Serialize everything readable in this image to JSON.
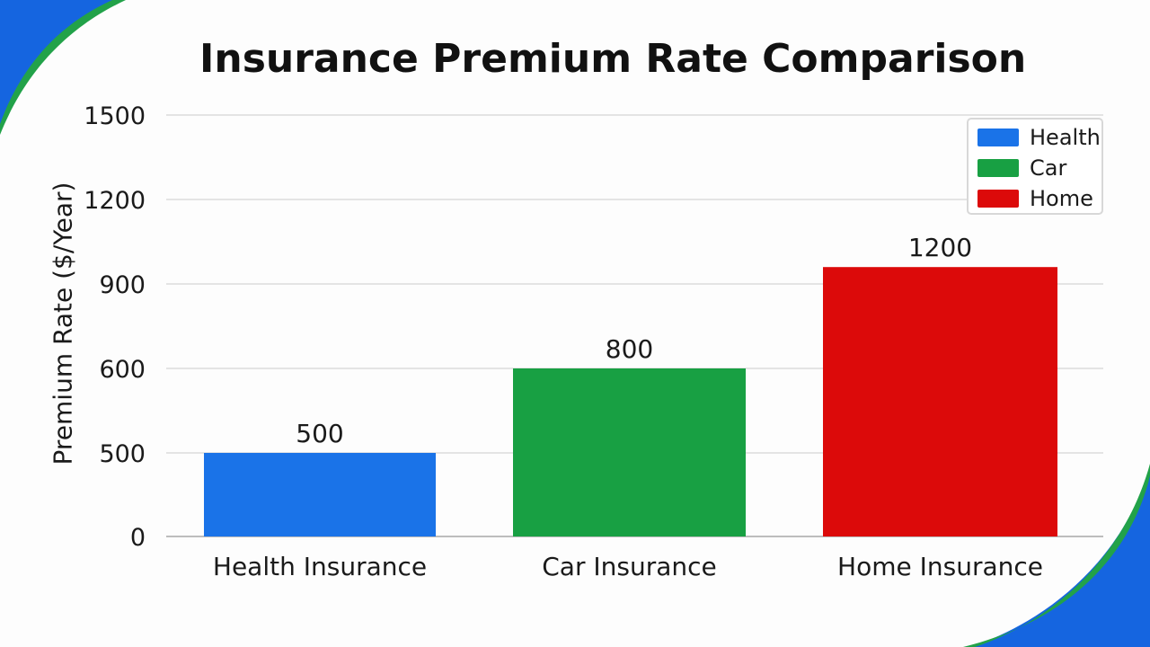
{
  "chart_data": {
    "type": "bar",
    "title": "Insurance Premium Rate Comparison",
    "xlabel": "",
    "ylabel": "Premium Rate ($/Year)",
    "categories": [
      "Health Insurance",
      "Car Insurance",
      "Home Insurance"
    ],
    "values": [
      500,
      800,
      1200
    ],
    "data_labels": [
      "500",
      "800",
      "1200"
    ],
    "y_ticks": [
      "0",
      "500",
      "600",
      "900",
      "1200",
      "1500"
    ],
    "bar_colors": [
      "#1a73e8",
      "#18a043",
      "#dc0a0a"
    ],
    "grid": true,
    "legend": {
      "placement": "top-right",
      "entries": [
        {
          "label": "Health",
          "color": "#1a73e8"
        },
        {
          "label": "Car",
          "color": "#18a043"
        },
        {
          "label": "Home",
          "color": "#dc0a0a"
        }
      ]
    }
  },
  "decor": {
    "corner_blue": "#1565e0",
    "corner_green": "#22a249"
  }
}
